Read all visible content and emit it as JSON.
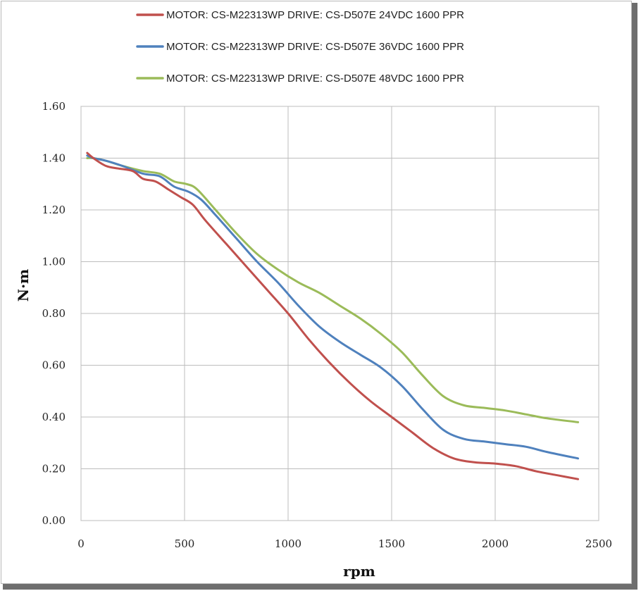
{
  "chart_data": {
    "type": "line",
    "title": "",
    "xlabel": "rpm",
    "ylabel": "N·m",
    "xlim": [
      0,
      2500
    ],
    "ylim": [
      0,
      1.6
    ],
    "x_ticks": [
      "0",
      "500",
      "1000",
      "1500",
      "2000",
      "2500"
    ],
    "y_ticks": [
      "0.00",
      "0.20",
      "0.40",
      "0.60",
      "0.80",
      "1.00",
      "1.20",
      "1.40",
      "1.60"
    ],
    "grid": true,
    "legend_position": "top",
    "series": [
      {
        "name": "MOTOR: CS-M22313WP  DRIVE: CS-D507E  24VDC  1600 PPR",
        "color": "#c0504d",
        "points": [
          [
            30,
            1.42
          ],
          [
            60,
            1.4
          ],
          [
            120,
            1.37
          ],
          [
            180,
            1.36
          ],
          [
            250,
            1.35
          ],
          [
            300,
            1.32
          ],
          [
            360,
            1.31
          ],
          [
            420,
            1.28
          ],
          [
            480,
            1.25
          ],
          [
            540,
            1.22
          ],
          [
            600,
            1.16
          ],
          [
            700,
            1.07
          ],
          [
            800,
            0.98
          ],
          [
            900,
            0.89
          ],
          [
            1000,
            0.8
          ],
          [
            1100,
            0.7
          ],
          [
            1200,
            0.61
          ],
          [
            1300,
            0.53
          ],
          [
            1400,
            0.46
          ],
          [
            1500,
            0.4
          ],
          [
            1600,
            0.34
          ],
          [
            1700,
            0.28
          ],
          [
            1800,
            0.24
          ],
          [
            1900,
            0.225
          ],
          [
            2000,
            0.22
          ],
          [
            2100,
            0.21
          ],
          [
            2200,
            0.19
          ],
          [
            2300,
            0.175
          ],
          [
            2400,
            0.16
          ]
        ]
      },
      {
        "name": "MOTOR: CS-M22313WP  DRIVE: CS-D507E  36VDC  1600 PPR",
        "color": "#4f81bd",
        "points": [
          [
            30,
            1.41
          ],
          [
            60,
            1.4
          ],
          [
            120,
            1.39
          ],
          [
            200,
            1.37
          ],
          [
            300,
            1.34
          ],
          [
            380,
            1.33
          ],
          [
            450,
            1.29
          ],
          [
            520,
            1.27
          ],
          [
            580,
            1.24
          ],
          [
            650,
            1.18
          ],
          [
            750,
            1.09
          ],
          [
            850,
            1.0
          ],
          [
            950,
            0.92
          ],
          [
            1050,
            0.83
          ],
          [
            1150,
            0.75
          ],
          [
            1250,
            0.69
          ],
          [
            1350,
            0.64
          ],
          [
            1450,
            0.59
          ],
          [
            1550,
            0.52
          ],
          [
            1650,
            0.43
          ],
          [
            1750,
            0.35
          ],
          [
            1850,
            0.315
          ],
          [
            1950,
            0.305
          ],
          [
            2050,
            0.295
          ],
          [
            2150,
            0.285
          ],
          [
            2250,
            0.265
          ],
          [
            2400,
            0.24
          ]
        ]
      },
      {
        "name": "MOTOR: CS-M22313WP  DRIVE: CS-D507E  48VDC  1600 PPR",
        "color": "#9bbb59",
        "points": [
          [
            30,
            1.4
          ],
          [
            60,
            1.4
          ],
          [
            120,
            1.39
          ],
          [
            200,
            1.37
          ],
          [
            300,
            1.35
          ],
          [
            380,
            1.34
          ],
          [
            450,
            1.31
          ],
          [
            510,
            1.3
          ],
          [
            560,
            1.28
          ],
          [
            650,
            1.2
          ],
          [
            750,
            1.11
          ],
          [
            850,
            1.03
          ],
          [
            950,
            0.97
          ],
          [
            1050,
            0.92
          ],
          [
            1150,
            0.88
          ],
          [
            1250,
            0.83
          ],
          [
            1350,
            0.78
          ],
          [
            1450,
            0.72
          ],
          [
            1550,
            0.65
          ],
          [
            1650,
            0.56
          ],
          [
            1750,
            0.48
          ],
          [
            1850,
            0.445
          ],
          [
            1950,
            0.435
          ],
          [
            2050,
            0.425
          ],
          [
            2150,
            0.41
          ],
          [
            2250,
            0.395
          ],
          [
            2400,
            0.38
          ]
        ]
      }
    ]
  }
}
